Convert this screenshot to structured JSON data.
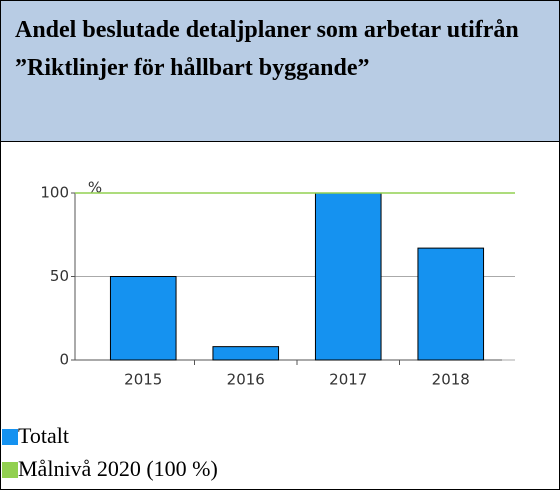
{
  "chart_data": {
    "type": "bar",
    "title": "Andel beslutade detaljplaner som arbetar utifrån ”Riktlinjer för hållbart byggande”",
    "y_label": "%",
    "categories": [
      "2015",
      "2016",
      "2017",
      "2018"
    ],
    "series": [
      {
        "name": "Totalt",
        "color": "#1592f0",
        "values": [
          50,
          8,
          100,
          67
        ]
      },
      {
        "name": "Målnivå 2020 (100 %)",
        "color": "#92d050",
        "type": "line",
        "values": [
          100,
          100,
          100,
          100
        ]
      }
    ],
    "ylim": [
      0,
      100
    ],
    "yticks": [
      0,
      50,
      100
    ],
    "grid": true
  }
}
